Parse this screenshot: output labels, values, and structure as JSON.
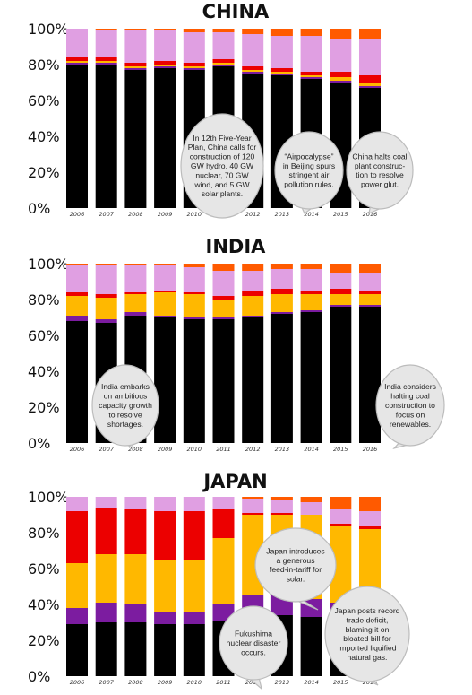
{
  "colors": {
    "coal": "#000000",
    "gas": "#7c1ca0",
    "oil": "#ffb800",
    "nuclear": "#ec0000",
    "hydro": "#e09fe2",
    "renewables": "#ff5a00",
    "background": "#ffffff",
    "bubble_fill": "#e6e6e6",
    "bubble_stroke": "#bcbcbc"
  },
  "chart_data": [
    {
      "type": "bar",
      "stacked": true,
      "title": "CHINA",
      "categories": [
        "2006",
        "2007",
        "2008",
        "2009",
        "2010",
        "2011",
        "2012",
        "2013",
        "2014",
        "2015",
        "2016"
      ],
      "yticks": [
        "0%",
        "20%",
        "40%",
        "60%",
        "80%",
        "100%"
      ],
      "ylim": [
        0,
        100
      ],
      "grid": false,
      "legend": "none",
      "series": [
        {
          "key": "coal",
          "values": [
            80,
            80,
            77,
            78,
            77,
            79,
            75,
            74,
            72,
            70,
            67
          ]
        },
        {
          "key": "gas",
          "values": [
            1,
            1,
            1,
            1,
            1,
            1,
            1,
            1,
            1,
            1,
            1
          ]
        },
        {
          "key": "oil",
          "values": [
            1,
            1,
            1,
            1,
            1,
            1,
            1,
            1,
            1,
            2,
            2
          ]
        },
        {
          "key": "nuclear",
          "values": [
            2,
            2,
            2,
            2,
            2,
            2,
            2,
            2,
            2,
            3,
            4
          ]
        },
        {
          "key": "hydro",
          "values": [
            16,
            15,
            18,
            17,
            17,
            15,
            18,
            18,
            20,
            18,
            20
          ]
        },
        {
          "key": "renewables",
          "values": [
            0,
            1,
            1,
            1,
            2,
            2,
            3,
            4,
            4,
            6,
            6
          ]
        }
      ],
      "annotations": [
        "In 12th Five-Year Plan, China calls for construction of 120 GW hydro, 40 GW nuclear, 70 GW wind, and 5 GW solar plants.",
        "\"Airpocalypse\" in Beijing spurs stringent air pollution rules.",
        "China halts coal plant construction to resolve power glut."
      ]
    },
    {
      "type": "bar",
      "stacked": true,
      "title": "INDIA",
      "categories": [
        "2006",
        "2007",
        "2008",
        "2009",
        "2010",
        "2011",
        "2012",
        "2013",
        "2014",
        "2015",
        "2016"
      ],
      "yticks": [
        "0%",
        "20%",
        "40%",
        "60%",
        "80%",
        "100%"
      ],
      "ylim": [
        0,
        100
      ],
      "grid": false,
      "legend": "none",
      "series": [
        {
          "key": "coal",
          "values": [
            68,
            67,
            71,
            70,
            69,
            69,
            70,
            72,
            73,
            76,
            76
          ]
        },
        {
          "key": "gas",
          "values": [
            3,
            2,
            2,
            1,
            1,
            1,
            1,
            1,
            1,
            1,
            1
          ]
        },
        {
          "key": "oil",
          "values": [
            11,
            12,
            10,
            13,
            13,
            10,
            11,
            10,
            9,
            6,
            6
          ]
        },
        {
          "key": "nuclear",
          "values": [
            2,
            2,
            1,
            1,
            1,
            2,
            3,
            3,
            2,
            3,
            2
          ]
        },
        {
          "key": "hydro",
          "values": [
            15,
            16,
            15,
            14,
            14,
            14,
            11,
            11,
            12,
            9,
            10
          ]
        },
        {
          "key": "renewables",
          "values": [
            1,
            1,
            1,
            1,
            2,
            4,
            4,
            3,
            3,
            5,
            5
          ]
        }
      ],
      "annotations": [
        "India embarks on ambitious capacity growth to resolve shortages.",
        "India considers halting coal construction to focus on renewables."
      ]
    },
    {
      "type": "bar",
      "stacked": true,
      "title": "JAPAN",
      "categories": [
        "2006",
        "2007",
        "2008",
        "2009",
        "2010",
        "2011",
        "2012",
        "2013",
        "2014",
        "2015",
        "2016"
      ],
      "yticks": [
        "0%",
        "20%",
        "40%",
        "60%",
        "80%",
        "100%"
      ],
      "ylim": [
        0,
        100
      ],
      "grid": false,
      "legend": "none",
      "series": [
        {
          "key": "coal",
          "values": [
            29,
            30,
            30,
            29,
            29,
            31,
            33,
            34,
            33,
            32,
            34
          ]
        },
        {
          "key": "gas",
          "values": [
            9,
            11,
            10,
            7,
            7,
            9,
            12,
            11,
            10,
            9,
            8
          ]
        },
        {
          "key": "oil",
          "values": [
            25,
            27,
            28,
            29,
            29,
            37,
            45,
            45,
            47,
            43,
            40
          ]
        },
        {
          "key": "nuclear",
          "values": [
            29,
            26,
            25,
            27,
            27,
            16,
            1,
            1,
            0,
            1,
            2
          ]
        },
        {
          "key": "hydro",
          "values": [
            8,
            6,
            7,
            8,
            8,
            7,
            8,
            7,
            7,
            8,
            8
          ]
        },
        {
          "key": "renewables",
          "values": [
            0,
            0,
            0,
            0,
            0,
            0,
            1,
            2,
            3,
            7,
            8
          ]
        }
      ],
      "annotations": [
        "Fukushima nuclear disaster occurs.",
        "Japan introduces a generous feed-in-tariff for solar.",
        "Japan posts record trade deficit, blaming it on bloated bill for imported liquified natural gas."
      ]
    }
  ]
}
